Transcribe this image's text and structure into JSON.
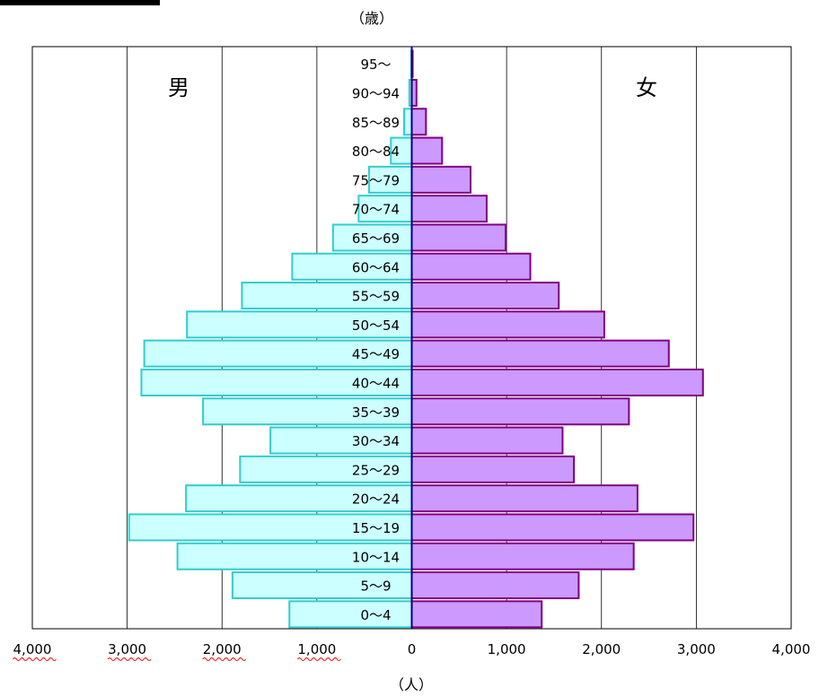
{
  "chart_data": {
    "type": "bar",
    "orientation": "horizontal",
    "subtype": "population-pyramid",
    "y_unit_label": "（歳）",
    "x_unit_label": "（人）",
    "categories": [
      "0～4",
      "5～9",
      "10～14",
      "15～19",
      "20～24",
      "25～29",
      "30～34",
      "35～39",
      "40～44",
      "45～49",
      "50～54",
      "55～59",
      "60～64",
      "65～69",
      "70～74",
      "75～79",
      "80～84",
      "85～89",
      "90～94",
      "95～"
    ],
    "series": [
      {
        "name": "男",
        "side": "left",
        "fill": "#ccffff",
        "stroke": "#33cccc",
        "values": [
          1290,
          1890,
          2470,
          2980,
          2380,
          1810,
          1490,
          2200,
          2850,
          2820,
          2370,
          1790,
          1260,
          830,
          560,
          450,
          220,
          80,
          25,
          5
        ]
      },
      {
        "name": "女",
        "side": "right",
        "fill": "#cc99ff",
        "stroke": "#800080",
        "values": [
          1370,
          1760,
          2340,
          2970,
          2380,
          1710,
          1590,
          2290,
          3070,
          2710,
          2030,
          1550,
          1250,
          990,
          790,
          620,
          320,
          150,
          50,
          10
        ]
      }
    ],
    "xlim": [
      -4000,
      4000
    ],
    "x_ticks": [
      -4000,
      -3000,
      -2000,
      -1000,
      0,
      1000,
      2000,
      3000,
      4000
    ],
    "x_tick_labels": [
      "4,000",
      "3,000",
      "2,000",
      "1,000",
      "0",
      "1,000",
      "2,000",
      "3,000",
      "4,000"
    ],
    "side_labels": {
      "left": "男",
      "right": "女"
    },
    "grid": {
      "vertical": true,
      "horizontal": false
    },
    "colors": {
      "axis": "#000000",
      "grid": "#000000",
      "center_line": "#000080",
      "spell_underline": "#ff0000"
    }
  }
}
